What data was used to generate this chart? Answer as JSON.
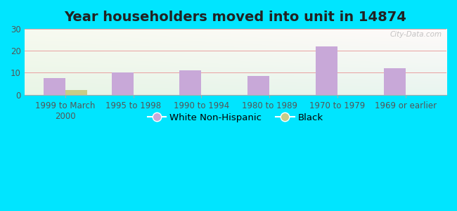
{
  "title": "Year householders moved into unit in 14874",
  "categories": [
    "1999 to March\n2000",
    "1995 to 1998",
    "1990 to 1994",
    "1980 to 1989",
    "1970 to 1979",
    "1969 or earlier"
  ],
  "white_non_hispanic": [
    7.5,
    10.0,
    11.0,
    8.5,
    22.0,
    12.0
  ],
  "black": [
    2.0,
    0,
    0,
    0,
    0,
    0
  ],
  "white_color": "#c8a8d8",
  "black_color": "#c8cc88",
  "ylim": [
    0,
    30
  ],
  "yticks": [
    0,
    10,
    20,
    30
  ],
  "bg_outer": "#00e5ff",
  "grid_color": "#e8a0a0",
  "watermark": "City-Data.com",
  "bar_width": 0.32,
  "title_fontsize": 14,
  "tick_fontsize": 8.5,
  "legend_fontsize": 9.5
}
